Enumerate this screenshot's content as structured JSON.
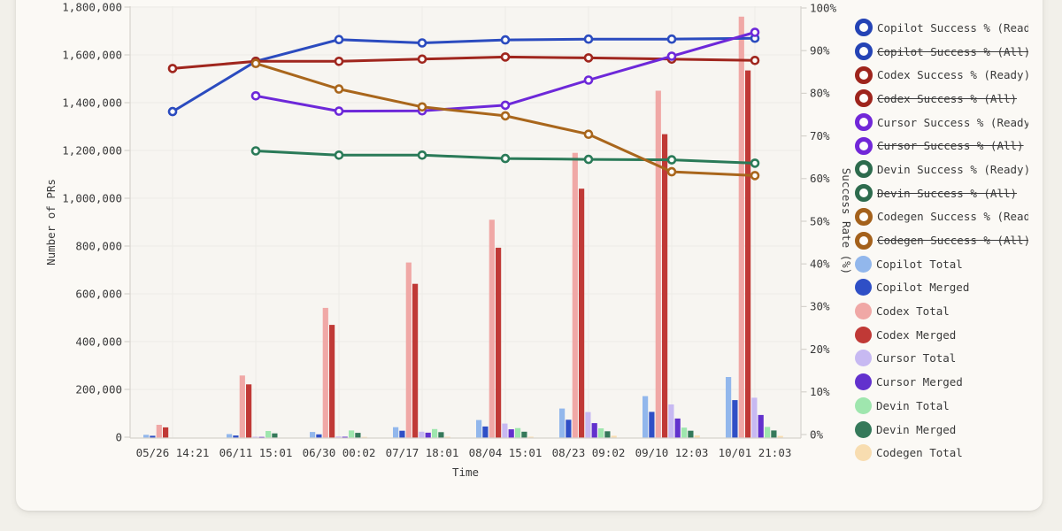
{
  "page": {
    "background": "#f2f0ea",
    "card_background": "#fbf9f5",
    "plot_background": "#f7f5f1",
    "grid_color": "#ecebe6",
    "axis_color": "#d6d3cd",
    "text_color": "#3a3a3a"
  },
  "chart_data": {
    "type": "bar+line",
    "categories": [
      "05/26 14:21",
      "06/11 15:01",
      "06/30 00:02",
      "07/17 18:01",
      "08/04 15:01",
      "08/23 09:02",
      "09/10 12:03",
      "10/01 21:03"
    ],
    "x_axis": {
      "title": "Time"
    },
    "left_axis": {
      "title": "Number of PRs",
      "range": [
        0,
        1800000
      ],
      "tick_step": 200000,
      "tick_labels": [
        "0",
        "200,000",
        "400,000",
        "600,000",
        "800,000",
        "1,000,000",
        "1,200,000",
        "1,400,000",
        "1,600,000",
        "1,800,000"
      ]
    },
    "right_axis": {
      "title": "Success Rate (%)",
      "range": [
        0,
        100
      ],
      "tick_step": 10,
      "tick_labels": [
        "0%",
        "10%",
        "20%",
        "30%",
        "40%",
        "50%",
        "60%",
        "70%",
        "80%",
        "90%",
        "100%"
      ]
    },
    "bar_series": [
      {
        "name": "Copilot Total",
        "color": "#92b7ec",
        "values": [
          10000,
          13000,
          22000,
          42000,
          72000,
          120000,
          172000,
          252000
        ]
      },
      {
        "name": "Copilot Merged",
        "color": "#2f4fc6",
        "values": [
          6000,
          7000,
          12000,
          27000,
          45000,
          73000,
          106000,
          155000
        ]
      },
      {
        "name": "Codex Total",
        "color": "#f0a8a6",
        "values": [
          52000,
          258000,
          541000,
          731000,
          910000,
          1190000,
          1450000,
          1760000
        ]
      },
      {
        "name": "Codex Merged",
        "color": "#c03936",
        "values": [
          41000,
          221000,
          470000,
          642000,
          793000,
          1040000,
          1268000,
          1535000
        ]
      },
      {
        "name": "Cursor Total",
        "color": "#c7b9f2",
        "values": [
          0,
          2000,
          3000,
          23000,
          57000,
          105000,
          137000,
          165000
        ]
      },
      {
        "name": "Cursor Merged",
        "color": "#6231cd",
        "values": [
          0,
          1000,
          2000,
          19000,
          33000,
          59000,
          78000,
          93000
        ]
      },
      {
        "name": "Devin Total",
        "color": "#9fe6ae",
        "values": [
          0,
          26000,
          28000,
          34000,
          38000,
          37000,
          40000,
          43000
        ]
      },
      {
        "name": "Devin Merged",
        "color": "#35795a",
        "values": [
          0,
          16000,
          18000,
          21000,
          23000,
          25000,
          27000,
          28000
        ]
      },
      {
        "name": "Codegen Total",
        "color": "#f8ddb0",
        "values": [
          0,
          0,
          1000,
          2000,
          2000,
          6000,
          7000,
          5000
        ]
      }
    ],
    "line_series": [
      {
        "name": "Copilot Success % (Ready)",
        "color": "#2b4bbf",
        "values": [
          75.7,
          87.5,
          92.6,
          91.8,
          92.5,
          92.7,
          92.7,
          92.9
        ]
      },
      {
        "name": "Codex Success % (Ready)",
        "color": "#a0261e",
        "values": [
          85.8,
          87.5,
          87.5,
          88.0,
          88.5,
          88.3,
          88.0,
          87.7
        ]
      },
      {
        "name": "Cursor Success % (Ready)",
        "color": "#6d28d9",
        "values": [
          null,
          79.4,
          75.8,
          75.9,
          77.2,
          83.1,
          88.7,
          94.3
        ]
      },
      {
        "name": "Devin Success % (Ready)",
        "color": "#2a7a58",
        "values": [
          null,
          66.5,
          65.5,
          65.5,
          64.7,
          64.5,
          64.4,
          63.6
        ]
      },
      {
        "name": "Codegen Success % (Ready)",
        "color": "#a9661c",
        "values": [
          null,
          87.0,
          81.0,
          76.8,
          74.7,
          70.4,
          61.6,
          60.7
        ]
      }
    ]
  },
  "legend": {
    "items": [
      {
        "label": "Copilot Success % (Ready)",
        "style": "ring",
        "color": "#2443b5",
        "struck": false
      },
      {
        "label": "Copilot Success % (All)",
        "style": "ring",
        "color": "#2443b5",
        "struck": true
      },
      {
        "label": "Codex Success % (Ready)",
        "style": "ring",
        "color": "#9e241c",
        "struck": false
      },
      {
        "label": "Codex Success % (All)",
        "style": "ring",
        "color": "#9e241c",
        "struck": true
      },
      {
        "label": "Cursor Success % (Ready)",
        "style": "ring",
        "color": "#7127d8",
        "struck": false
      },
      {
        "label": "Cursor Success % (All)",
        "style": "ring",
        "color": "#7127d8",
        "struck": true
      },
      {
        "label": "Devin Success % (Ready)",
        "style": "ring",
        "color": "#2d6b4d",
        "struck": false
      },
      {
        "label": "Devin Success % (All)",
        "style": "ring",
        "color": "#2d6b4d",
        "struck": true
      },
      {
        "label": "Codegen Success % (Ready)",
        "style": "ring",
        "color": "#a4611b",
        "struck": false
      },
      {
        "label": "Codegen Success % (All)",
        "style": "ring",
        "color": "#a4611b",
        "struck": true
      },
      {
        "label": "Copilot Total",
        "style": "fill",
        "color": "#92b7ec",
        "struck": false
      },
      {
        "label": "Copilot Merged",
        "style": "fill",
        "color": "#2f4fc6",
        "struck": false
      },
      {
        "label": "Codex Total",
        "style": "fill",
        "color": "#f0a8a6",
        "struck": false
      },
      {
        "label": "Codex Merged",
        "style": "fill",
        "color": "#c03936",
        "struck": false
      },
      {
        "label": "Cursor Total",
        "style": "fill",
        "color": "#c7b9f2",
        "struck": false
      },
      {
        "label": "Cursor Merged",
        "style": "fill",
        "color": "#6231cd",
        "struck": false
      },
      {
        "label": "Devin Total",
        "style": "fill",
        "color": "#9fe6ae",
        "struck": false
      },
      {
        "label": "Devin Merged",
        "style": "fill",
        "color": "#35795a",
        "struck": false
      },
      {
        "label": "Codegen Total",
        "style": "fill",
        "color": "#f8ddb0",
        "struck": false
      }
    ]
  }
}
